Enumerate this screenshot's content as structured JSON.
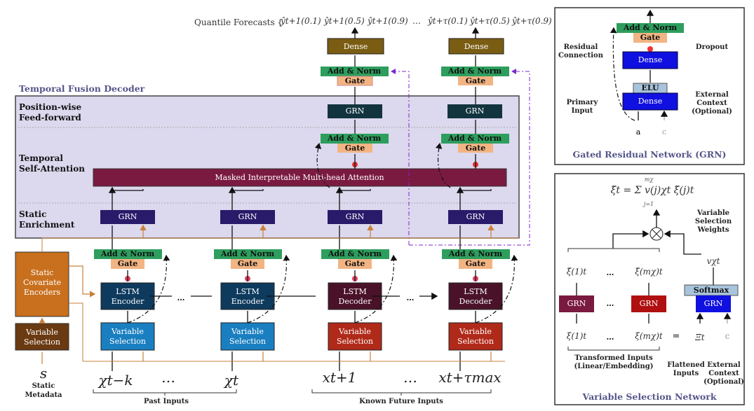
{
  "quantile": {
    "label": "Quantile Forecasts {",
    "items": [
      "ŷt+1(0.1)",
      "ŷt+1(0.5)",
      "ŷt+1(0.9)",
      "…",
      "ŷt+τ(0.1)",
      "ŷt+τ(0.5)",
      "ŷt+τ(0.9)"
    ]
  },
  "decoder": {
    "title": "Temporal Fusion Decoder",
    "ff_label": [
      "Position-wise",
      "Feed-forward"
    ],
    "attn_label": [
      "Temporal",
      "Self-Attention"
    ],
    "enrich_label": [
      "Static",
      "Enrichment"
    ],
    "attention": "Masked Interpretable Multi-head Attention"
  },
  "blocks": {
    "dense": "Dense",
    "add_norm": "Add & Norm",
    "gate": "Gate",
    "grn": "GRN",
    "lstm_enc": [
      "LSTM",
      "Encoder"
    ],
    "lstm_dec": [
      "LSTM",
      "Decoder"
    ],
    "var_sel": [
      "Variable",
      "Selection"
    ],
    "static_enc": [
      "Static",
      "Covariate",
      "Encoders"
    ],
    "ellipsis": "…"
  },
  "inputs": {
    "s": "s",
    "static_meta": [
      "Static",
      "Metadata"
    ],
    "x_tk": "χt−k",
    "dots": "…",
    "x_t": "χt",
    "x_t1": "xt+1",
    "x_tmax": "xt+τmax",
    "past": "Past Inputs",
    "future": "Known Future Inputs"
  },
  "grn_panel": {
    "title": "Gated Residual Network (GRN)",
    "add_norm": "Add & Norm",
    "gate": "Gate",
    "dense": "Dense",
    "elu": "ELU",
    "residual": [
      "Residual",
      "Connection"
    ],
    "dropout": "Dropout",
    "primary": [
      "Primary",
      "Input"
    ],
    "external": [
      "External",
      "Context",
      "(Optional)"
    ],
    "a": "a",
    "c": "c"
  },
  "vsn_panel": {
    "title": "Variable Selection Network",
    "formula": "ξ̃t = Σ v(j)χt ξ̃(j)t",
    "sum_top": "mχ",
    "sum_bot": "j=1",
    "weights_label": [
      "Variable",
      "Selection",
      "Weights"
    ],
    "v": "vχt",
    "xi1_out": "ξ̃(1)t",
    "ximx_out": "ξ̃(mχ)t",
    "xi1_in": "ξ(1)t",
    "ximx_in": "ξ(mχ)t",
    "eq": "=",
    "Xi": "Ξt",
    "c": "c",
    "grn": "GRN",
    "softmax": "Softmax",
    "dots": "…",
    "transformed": [
      "Transformed Inputs",
      "(Linear/Embedding)"
    ],
    "flattened": [
      "Flattened",
      "Inputs"
    ],
    "external": [
      "External",
      "Context",
      "(Optional)"
    ]
  },
  "colors": {
    "decoder_bg": "#dcd8ee",
    "add_norm": "#2e9e5e",
    "gate": "#f2b483",
    "dense_out": "#7a5c12",
    "grn_ff": "#12343f",
    "attention": "#7a1a40",
    "grn_enrich": "#2a1a6a",
    "lstm_enc": "#0e3a5e",
    "lstm_dec": "#4a1228",
    "vs_past": "#1a7fc0",
    "vs_future": "#b02a1a",
    "static_enc": "#c8701e",
    "vs_static": "#6a3a12",
    "grn_blue": "#1010e0"
  }
}
